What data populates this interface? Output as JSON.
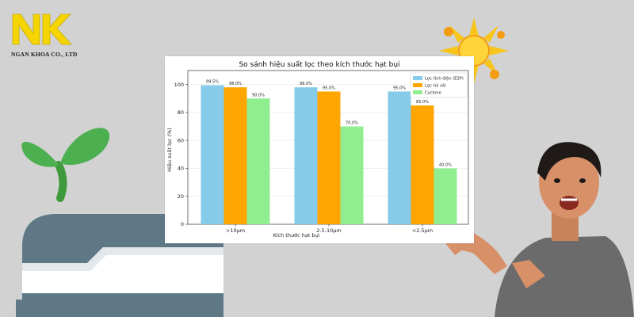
{
  "brand": {
    "name": "NGAN KHOA CO., LTD",
    "mark": "NK",
    "mark_color": "#f5d400"
  },
  "decorations": [
    "sprout",
    "sun",
    "tray",
    "person"
  ],
  "chart_data": {
    "type": "bar",
    "title": "So sánh hiệu suất lọc theo kích thước hạt bụi",
    "xlabel": "Kích thước hạt bụi",
    "ylabel": "Hiệu suất lọc (%)",
    "categories": [
      ">10µm",
      "2.5-10µm",
      "<2.5µm"
    ],
    "series": [
      {
        "name": "Lọc tĩnh điện (ESP)",
        "color": "#86cbea",
        "values": [
          99.5,
          98.0,
          95.0
        ],
        "labels": [
          "99.5%",
          "98.0%",
          "95.0%"
        ]
      },
      {
        "name": "Lọc túi vải",
        "color": "#ffa500",
        "values": [
          98.0,
          95.0,
          85.0
        ],
        "labels": [
          "98.0%",
          "95.0%",
          "85.0%"
        ]
      },
      {
        "name": "Cyclone",
        "color": "#90ee90",
        "values": [
          90.0,
          70.0,
          40.0
        ],
        "labels": [
          "90.0%",
          "70.0%",
          "40.0%"
        ]
      }
    ],
    "ylim": [
      0,
      110
    ],
    "yticks": [
      0,
      20,
      40,
      60,
      80,
      100
    ],
    "grid": "horizontal",
    "legend": "top-right"
  }
}
